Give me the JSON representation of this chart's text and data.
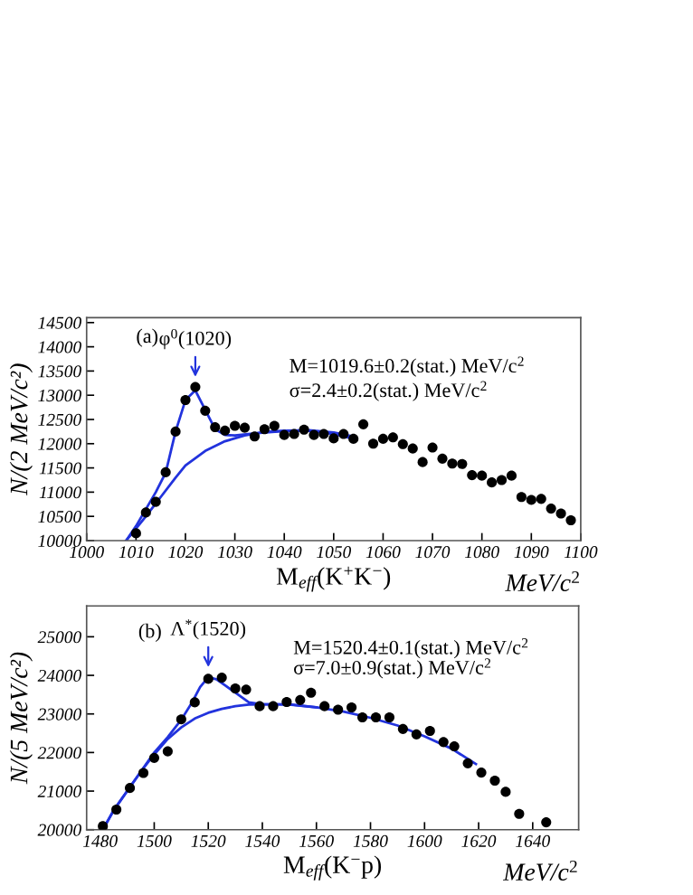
{
  "chart_data": [
    {
      "type": "scatter",
      "ylabel": "N/(2 MeV/c²)",
      "xlabel": "M$_{eff}$(K$^{+}$K$^{−}$)",
      "xlim": [
        1000,
        1100
      ],
      "ylim": [
        10000,
        14600
      ],
      "xticks": [
        1000,
        1010,
        1020,
        1030,
        1040,
        1050,
        1060,
        1070,
        1080,
        1090,
        1100
      ],
      "yticks": [
        10000,
        10500,
        11000,
        11500,
        12000,
        12500,
        13000,
        13500,
        14000,
        14500
      ],
      "grid": false,
      "legend": false,
      "annotations": [
        "(a)",
        "M=1019.6±0.2(stat.) MeV/c$^{2}$",
        "σ=2.4±0.2(stat.) MeV/c$^{2}$",
        "MeV/c$^{2}$",
        {
          "text": "φ$^{0}$(1020)",
          "x": 1022,
          "y": 13170
        }
      ],
      "series": [
        {
          "marker": "circle",
          "color": "#000000",
          "x": [
            1010,
            1012,
            1014,
            1016,
            1018,
            1020,
            1022,
            1024,
            1026,
            1028,
            1030,
            1032,
            1034,
            1036,
            1038,
            1040,
            1042,
            1044,
            1046,
            1048,
            1050,
            1052,
            1054,
            1056,
            1058,
            1060,
            1062,
            1064,
            1066,
            1068,
            1070,
            1072,
            1074,
            1076,
            1078,
            1080,
            1082,
            1084,
            1086,
            1088,
            1090,
            1092,
            1094,
            1096,
            1098
          ],
          "values": [
            10150,
            10580,
            10800,
            11410,
            12250,
            12900,
            13170,
            12680,
            12340,
            12270,
            12370,
            12330,
            12150,
            12300,
            12370,
            12180,
            12200,
            12290,
            12180,
            12200,
            12110,
            12200,
            12100,
            12400,
            12000,
            12100,
            12130,
            11990,
            11900,
            11620,
            11920,
            11690,
            11590,
            11580,
            11350,
            11340,
            11200,
            11250,
            11340,
            10900,
            10840,
            10860,
            10660,
            10560,
            10420
          ]
        },
        {
          "type": "line",
          "color": "#2233dd",
          "x": [
            1008,
            1010,
            1012,
            1014,
            1016,
            1018,
            1020,
            1022,
            1024,
            1026,
            1028,
            1030,
            1035,
            1040,
            1045,
            1050,
            1054
          ],
          "values": [
            10000,
            10300,
            10650,
            11000,
            11400,
            12250,
            12900,
            13100,
            12700,
            12300,
            12180,
            12170,
            12220,
            12260,
            12270,
            12200,
            12100
          ]
        },
        {
          "type": "line",
          "color": "#2233dd",
          "x": [
            1008,
            1010,
            1012,
            1015,
            1018,
            1020,
            1024,
            1028,
            1032,
            1036,
            1040,
            1045,
            1050,
            1054
          ],
          "values": [
            10000,
            10250,
            10500,
            10900,
            11300,
            11550,
            11850,
            12050,
            12170,
            12240,
            12270,
            12280,
            12230,
            12150
          ]
        }
      ]
    },
    {
      "type": "scatter",
      "ylabel": "N/(5 MeV/c²)",
      "xlabel": "M$_{eff}$(K$^{−}$p)",
      "xlim": [
        1475,
        1657
      ],
      "ylim": [
        20000,
        25800
      ],
      "xticks": [
        1480,
        1500,
        1520,
        1540,
        1560,
        1580,
        1600,
        1620,
        1640
      ],
      "yticks": [
        20000,
        21000,
        22000,
        23000,
        24000,
        25000
      ],
      "grid": false,
      "legend": false,
      "annotations": [
        "(b)",
        "M=1520.4±0.1(stat.) MeV/c$^{2}$",
        "σ=7.0±0.9(stat.) MeV/c$^{2}$",
        "MeV/c$^{2}$",
        {
          "text": "Λ$^{*}$(1520)",
          "x": 1520,
          "y": 23950
        }
      ],
      "series": [
        {
          "marker": "circle",
          "color": "#000000",
          "x": [
            1481,
            1486,
            1491,
            1496,
            1500,
            1505,
            1510,
            1515,
            1520,
            1525,
            1530,
            1534,
            1539,
            1544,
            1549,
            1554,
            1558,
            1563,
            1568,
            1573,
            1577,
            1582,
            1587,
            1592,
            1597,
            1602,
            1607,
            1611,
            1616,
            1621,
            1626,
            1630,
            1635,
            1645
          ],
          "values": [
            20090,
            20520,
            21080,
            21470,
            21860,
            22030,
            22860,
            23300,
            23910,
            23940,
            23660,
            23630,
            23200,
            23200,
            23310,
            23360,
            23550,
            23200,
            23110,
            23170,
            22910,
            22910,
            22910,
            22610,
            22470,
            22560,
            22270,
            22160,
            21720,
            21480,
            21270,
            20980,
            20410,
            20190
          ]
        },
        {
          "type": "line",
          "color": "#2233dd",
          "x": [
            1481,
            1485,
            1490,
            1495,
            1500,
            1505,
            1510,
            1514,
            1517,
            1520,
            1523,
            1526,
            1530,
            1535,
            1540,
            1550,
            1560,
            1570,
            1580,
            1590,
            1600,
            1610,
            1619
          ],
          "values": [
            20000,
            20500,
            21000,
            21500,
            22000,
            22400,
            22850,
            23300,
            23700,
            23950,
            23900,
            23750,
            23550,
            23300,
            23250,
            23250,
            23170,
            23060,
            22900,
            22700,
            22420,
            22100,
            21700
          ]
        },
        {
          "type": "line",
          "color": "#2233dd",
          "x": [
            1481,
            1485,
            1490,
            1495,
            1500,
            1505,
            1510,
            1515,
            1520,
            1525,
            1530,
            1535,
            1540,
            1545,
            1550,
            1560
          ],
          "values": [
            20000,
            20500,
            21000,
            21500,
            21950,
            22350,
            22650,
            22880,
            23030,
            23130,
            23200,
            23240,
            23250,
            23250,
            23240,
            23170
          ]
        }
      ]
    }
  ]
}
